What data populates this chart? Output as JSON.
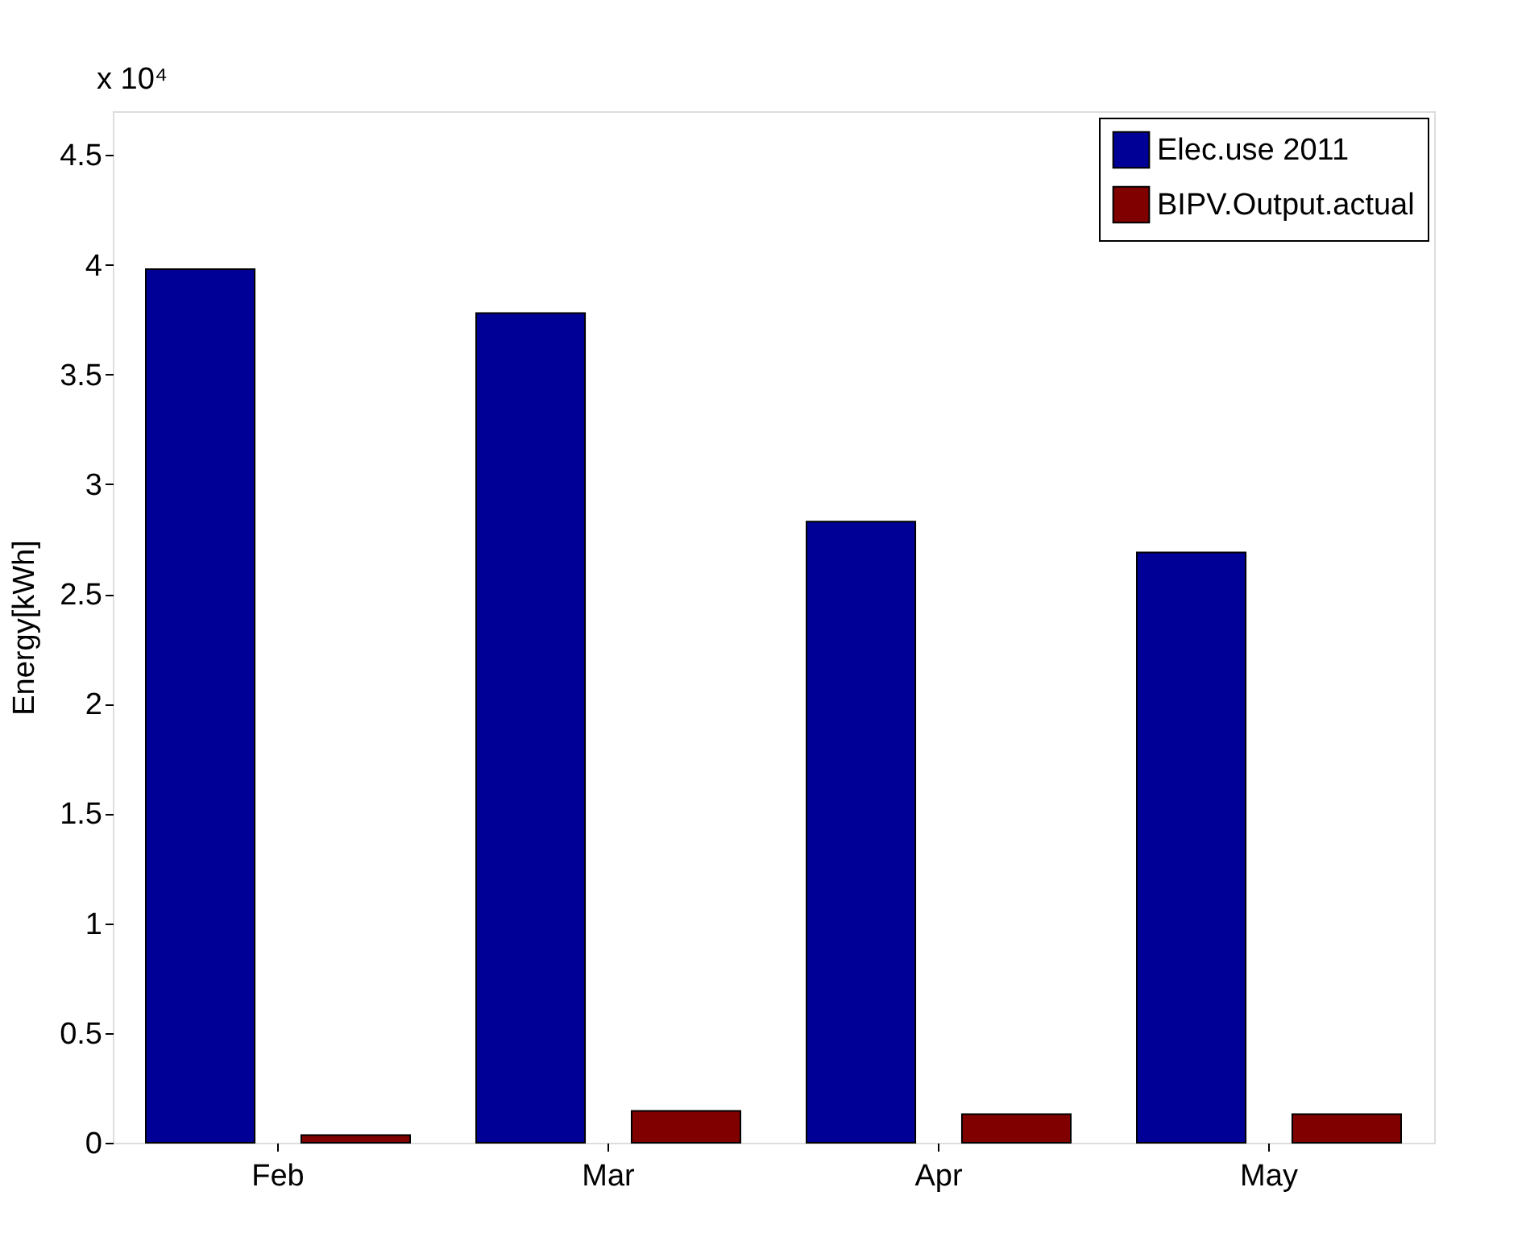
{
  "chart_data": {
    "type": "bar",
    "ylabel": "Energy[kWh]",
    "categories": [
      "Feb",
      "Mar",
      "Apr",
      "May"
    ],
    "series": [
      {
        "name": "Elec.use 2011",
        "color": "#000096",
        "values": [
          3.98,
          3.78,
          2.83,
          2.69
        ]
      },
      {
        "name": "BIPV.Output.actual",
        "color": "#800000",
        "values": [
          0.035,
          0.145,
          0.13,
          0.13
        ]
      }
    ],
    "ylim": [
      0,
      4.7
    ],
    "yticks": [
      0,
      0.5,
      1,
      1.5,
      2,
      2.5,
      3,
      3.5,
      4,
      4.5
    ],
    "annotations": [
      "x 10⁴"
    ],
    "legend": "top right",
    "grid": false
  }
}
